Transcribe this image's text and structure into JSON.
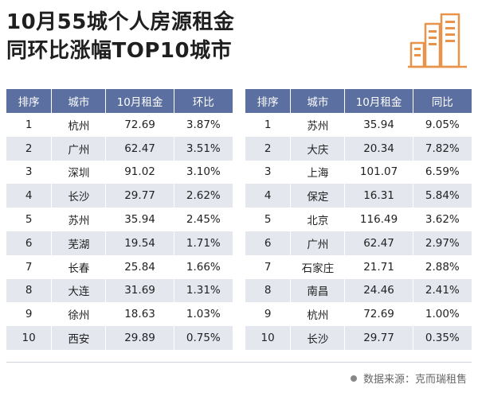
{
  "title": {
    "line1": "10月55城个人房源租金",
    "line2": "同环比涨幅TOP10城市"
  },
  "logo_icon": "city-buildings-icon",
  "left_table": {
    "headers": [
      "排序",
      "城市",
      "10月租金",
      "环比"
    ],
    "rows": [
      [
        "1",
        "杭州",
        "72.69",
        "3.87%"
      ],
      [
        "2",
        "广州",
        "62.47",
        "3.51%"
      ],
      [
        "3",
        "深圳",
        "91.02",
        "3.10%"
      ],
      [
        "4",
        "长沙",
        "29.77",
        "2.62%"
      ],
      [
        "5",
        "苏州",
        "35.94",
        "2.45%"
      ],
      [
        "6",
        "芜湖",
        "19.54",
        "1.71%"
      ],
      [
        "7",
        "长春",
        "25.84",
        "1.66%"
      ],
      [
        "8",
        "大连",
        "31.69",
        "1.31%"
      ],
      [
        "9",
        "徐州",
        "18.63",
        "1.03%"
      ],
      [
        "10",
        "西安",
        "29.89",
        "0.75%"
      ]
    ]
  },
  "right_table": {
    "headers": [
      "排序",
      "城市",
      "10月租金",
      "同比"
    ],
    "rows": [
      [
        "1",
        "苏州",
        "35.94",
        "9.05%"
      ],
      [
        "2",
        "大庆",
        "20.34",
        "7.82%"
      ],
      [
        "3",
        "上海",
        "101.07",
        "6.59%"
      ],
      [
        "4",
        "保定",
        "16.31",
        "5.84%"
      ],
      [
        "5",
        "北京",
        "116.49",
        "3.62%"
      ],
      [
        "6",
        "广州",
        "62.47",
        "2.97%"
      ],
      [
        "7",
        "石家庄",
        "21.71",
        "2.88%"
      ],
      [
        "8",
        "南昌",
        "24.46",
        "2.41%"
      ],
      [
        "9",
        "杭州",
        "72.69",
        "1.00%"
      ],
      [
        "10",
        "长沙",
        "29.77",
        "0.35%"
      ]
    ]
  },
  "source": "数据来源：克而瑞租售",
  "colors": {
    "header_bg": "#5b6fa0",
    "stripe": "#e4e7ee",
    "logo_orange": "#e8924a"
  }
}
